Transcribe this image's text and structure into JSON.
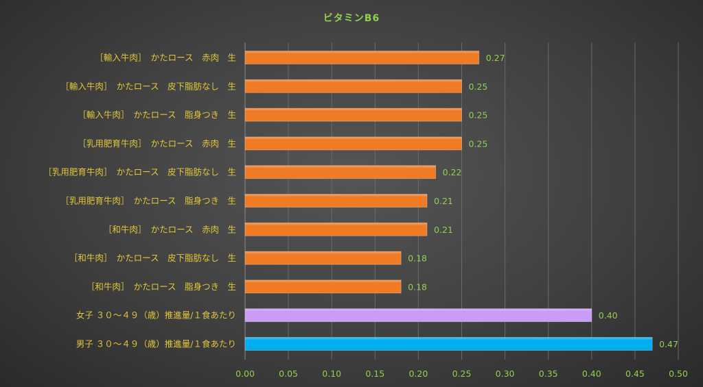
{
  "chart_data": {
    "type": "bar",
    "orientation": "horizontal",
    "title": "ビタミンB6",
    "xlabel": "",
    "ylabel": "",
    "xlim": [
      0,
      0.5
    ],
    "ticks": [
      "0.00",
      "0.05",
      "0.10",
      "0.15",
      "0.20",
      "0.25",
      "0.30",
      "0.35",
      "0.40",
      "0.45",
      "0.50"
    ],
    "grid": true,
    "categories": [
      "［輸入牛肉］　かたロース　赤肉　生",
      "［輸入牛肉］　かたロース　皮下脂肪なし　生",
      "［輸入牛肉］　かたロース　脂身つき　生",
      "［乳用肥育牛肉］　かたロース　赤肉　生",
      "［乳用肥育牛肉］　かたロース　皮下脂肪なし　生",
      "［乳用肥育牛肉］　かたロース　脂身つき　生",
      "［和牛肉］　かたロース　赤肉　生",
      "［和牛肉］　かたロース　皮下脂肪なし　生",
      "［和牛肉］　かたロース　脂身つき　生",
      "女子 ３０～４９（歳）推進量/１食あたり",
      "男子 ３０～４９（歳）推進量/１食あたり"
    ],
    "values": [
      0.27,
      0.25,
      0.25,
      0.25,
      0.22,
      0.21,
      0.21,
      0.18,
      0.18,
      0.4,
      0.47
    ],
    "value_labels": [
      "0.27",
      "0.25",
      "0.25",
      "0.25",
      "0.22",
      "0.21",
      "0.21",
      "0.18",
      "0.18",
      "0.40",
      "0.47"
    ],
    "bar_colors": [
      "#f07b25",
      "#f07b25",
      "#f07b25",
      "#f07b25",
      "#f07b25",
      "#f07b25",
      "#f07b25",
      "#f07b25",
      "#f07b25",
      "#c99cf5",
      "#00aeef"
    ],
    "colors": {
      "label_text": "#e2c73a",
      "value_text": "#92d050",
      "gridline": "#6a6a6a",
      "axis": "#8a8a8a"
    }
  }
}
